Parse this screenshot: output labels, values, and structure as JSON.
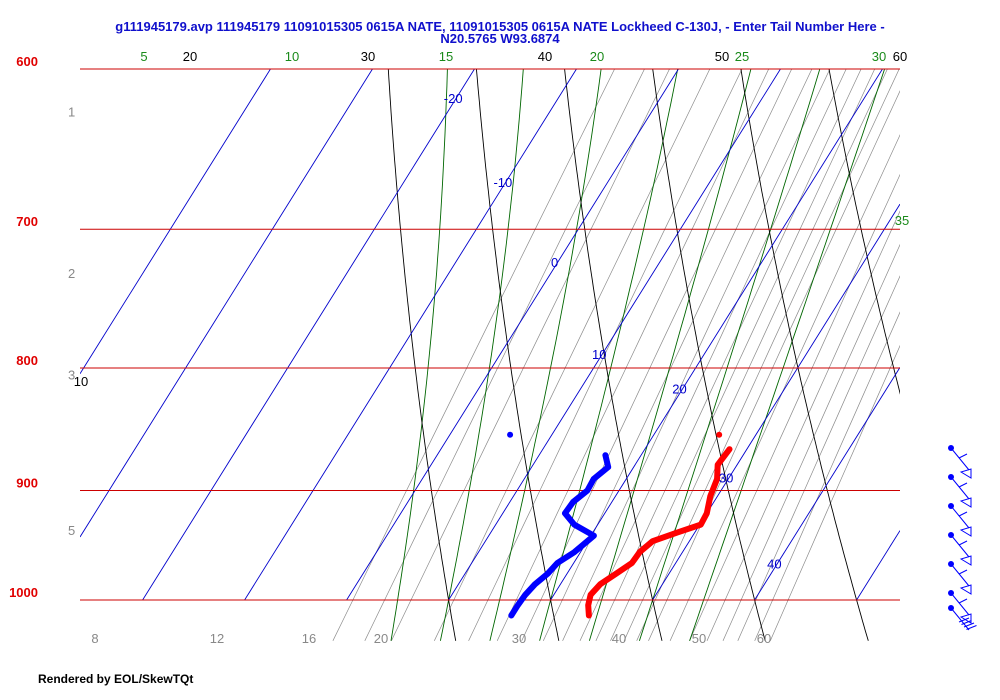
{
  "chart_data": {
    "type": "line",
    "chart_kind": "skew-t log-p diagram",
    "title_line1": "g111945179.avp 111945179 11091015305 0615A NATE, 11091015305 0615A NATE Lockheed C-130J, - Enter Tail Number Here -",
    "title_line2": "N20.5765 W93.6874",
    "pressure_range": [
      600,
      1000
    ],
    "pressure_scale": "log",
    "isobar_labels": [
      "600",
      "700",
      "800",
      "900",
      "1000"
    ],
    "isobars": [
      600,
      700,
      800,
      900,
      1000
    ],
    "height_labels": [
      {
        "text": "1",
        "p": 625
      },
      {
        "text": "2",
        "p": 730
      },
      {
        "text": "3",
        "p": 805
      },
      {
        "text": "5",
        "p": 935
      }
    ],
    "temperature_axis_labels": [
      "8",
      "12",
      "16",
      "20",
      "30",
      "40",
      "50",
      "60"
    ],
    "isotherms": [
      -20,
      -10,
      0,
      10,
      20,
      30,
      40
    ],
    "isotherm_labels": [
      {
        "text": "-20",
        "t": -20,
        "p": 620
      },
      {
        "text": "-10",
        "t": -10,
        "p": 672
      },
      {
        "text": "0",
        "t": 0,
        "p": 726
      },
      {
        "text": "10",
        "t": 10,
        "p": 793
      },
      {
        "text": "20",
        "t": 20,
        "p": 820
      },
      {
        "text": "30",
        "t": 30,
        "p": 893
      },
      {
        "text": "40",
        "t": 40,
        "p": 970
      }
    ],
    "dry_adiabat_labels": [
      "20",
      "30",
      "40",
      "50",
      "60",
      "10"
    ],
    "moist_adiabat_labels": [
      "5",
      "10",
      "15",
      "20",
      "25",
      "30",
      "35"
    ],
    "temperature_profile": [
      {
        "p": 1015,
        "t": 24.7
      },
      {
        "p": 1005,
        "t": 24.0
      },
      {
        "p": 995,
        "t": 23.6
      },
      {
        "p": 985,
        "t": 23.9
      },
      {
        "p": 975,
        "t": 24.8
      },
      {
        "p": 965,
        "t": 25.7
      },
      {
        "p": 955,
        "t": 25.8
      },
      {
        "p": 945,
        "t": 26.4
      },
      {
        "p": 937,
        "t": 28.3
      },
      {
        "p": 930,
        "t": 30.1
      },
      {
        "p": 920,
        "t": 30.0
      },
      {
        "p": 905,
        "t": 29.3
      },
      {
        "p": 890,
        "t": 28.9
      },
      {
        "p": 878,
        "t": 28.1
      },
      {
        "p": 865,
        "t": 28.3
      }
    ],
    "dewpoint_profile": [
      {
        "p": 1015,
        "t": 17.1
      },
      {
        "p": 1005,
        "t": 17.1
      },
      {
        "p": 995,
        "t": 17.2
      },
      {
        "p": 985,
        "t": 17.5
      },
      {
        "p": 975,
        "t": 18.1
      },
      {
        "p": 965,
        "t": 18.4
      },
      {
        "p": 955,
        "t": 19.4
      },
      {
        "p": 940,
        "t": 20.3
      },
      {
        "p": 930,
        "t": 17.7
      },
      {
        "p": 920,
        "t": 16.1
      },
      {
        "p": 910,
        "t": 16.2
      },
      {
        "p": 900,
        "t": 16.9
      },
      {
        "p": 890,
        "t": 16.8
      },
      {
        "p": 880,
        "t": 17.5
      },
      {
        "p": 870,
        "t": 16.5
      }
    ],
    "isolated_points": [
      {
        "series": "temperature",
        "p": 853,
        "t": 26.4
      },
      {
        "series": "dewpoint",
        "p": 853,
        "t": 5.9
      }
    ],
    "wind_barbs_count": 7,
    "colors": {
      "temperature": "#ff0000",
      "dewpoint": "#0000ff",
      "isobar": "#cc0000",
      "isotherm": "#0000cc",
      "dry_adiabat": "#000000",
      "moist_adiabat": "#006600",
      "mixing_ratio": "#8c8c8c",
      "title": "#1010cc"
    }
  },
  "footer": {
    "credit": "Rendered by EOL/SkewTQt"
  }
}
